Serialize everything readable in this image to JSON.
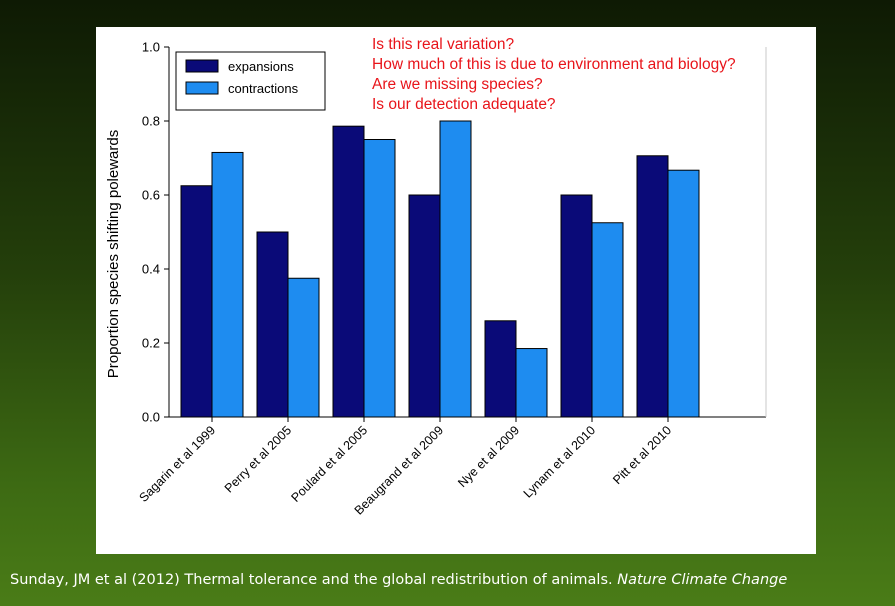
{
  "slide": {
    "caption_text": "Sunday, JM et al (2012) Thermal tolerance and the global redistribution of animals.",
    "caption_journal": "Nature Climate Change",
    "annotations": [
      "Is this real variation?",
      "How much of this is due to environment and biology?",
      "Are we missing species?",
      "Is our detection adequate?"
    ]
  },
  "chart_data": {
    "type": "bar",
    "title": "",
    "xlabel": "",
    "ylabel": "Proportion species shifting polewards",
    "ylim": [
      0,
      1.0
    ],
    "yticks": [
      "0.0",
      "0.2",
      "0.4",
      "0.6",
      "0.8",
      "1.0"
    ],
    "categories": [
      "Sagarin et al 1999",
      "Perry et al 2005",
      "Poulard et al 2005",
      "Beaugrand et al 2009",
      "Nye et al 2009",
      "Lynam et al 2010",
      "Pitt et al 2010"
    ],
    "series": [
      {
        "name": "expansions",
        "color": "#0a0a78",
        "values": [
          0.625,
          0.5,
          0.786,
          0.6,
          0.26,
          0.6,
          0.706
        ]
      },
      {
        "name": "contractions",
        "color": "#1e8cf0",
        "values": [
          0.715,
          0.375,
          0.75,
          0.8,
          0.185,
          0.525,
          0.667
        ]
      }
    ],
    "legend": "top-left",
    "grid": false
  }
}
